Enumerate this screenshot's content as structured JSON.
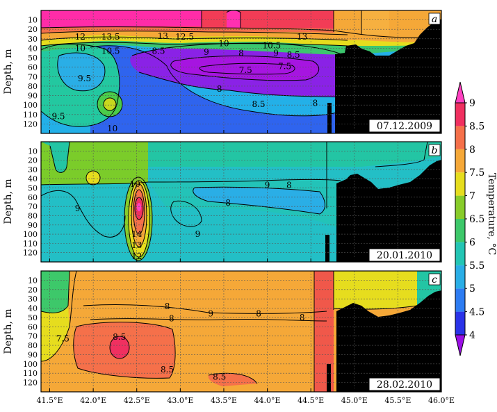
{
  "chart_data": {
    "type": "heatmap",
    "xaxis": {
      "range": [
        41.4,
        46.0
      ],
      "ticks": [
        41.5,
        42.0,
        42.5,
        43.0,
        43.5,
        44.0,
        44.5,
        45.0,
        45.5,
        46.0
      ],
      "tick_labels": [
        "41.5°E",
        "42.0°E",
        "42.5°E",
        "43.0°E",
        "43.5°E",
        "44.0°E",
        "44.5°E",
        "45.0°E",
        "45.5°E",
        "46.0°E"
      ],
      "grid": true
    },
    "yaxis": {
      "label": "Depth, m",
      "range": [
        0,
        130
      ],
      "inverted": true,
      "ticks": [
        10,
        20,
        30,
        40,
        50,
        60,
        70,
        80,
        90,
        100,
        110,
        120
      ],
      "tick_labels": [
        "10",
        "20",
        "30",
        "40",
        "50",
        "60",
        "70",
        "80",
        "90",
        "100",
        "110",
        "120"
      ],
      "grid": true
    },
    "colorbar": {
      "label": "Temperature, °C",
      "min": 4,
      "max": 9,
      "ticks": [
        4,
        4.5,
        5,
        5.5,
        6,
        6.5,
        7,
        7.5,
        8,
        8.5,
        9
      ],
      "tick_labels": [
        "4",
        "4.5",
        "5",
        "5.5",
        "6",
        "6.5",
        "7",
        "7.5",
        "8",
        "8.5",
        "9"
      ],
      "colors": [
        "#9b0fe6",
        "#2a33e8",
        "#2d7cf2",
        "#2aaee6",
        "#23c5b4",
        "#3dc86a",
        "#88cc2a",
        "#e6dd1e",
        "#f5a838",
        "#f5704a",
        "#f03060",
        "#ff40c0"
      ]
    },
    "panels": [
      {
        "letter": "a",
        "date": "07.12.2009",
        "contour_labels": [
          {
            "x": 41.85,
            "y": 28,
            "v": "12"
          },
          {
            "x": 42.2,
            "y": 28,
            "v": "13.5"
          },
          {
            "x": 42.8,
            "y": 27,
            "v": "13"
          },
          {
            "x": 43.05,
            "y": 28,
            "v": "12.5"
          },
          {
            "x": 43.5,
            "y": 35,
            "v": "10"
          },
          {
            "x": 44.05,
            "y": 37,
            "v": "10.5"
          },
          {
            "x": 44.4,
            "y": 28,
            "v": "13"
          },
          {
            "x": 41.85,
            "y": 40,
            "v": "10"
          },
          {
            "x": 42.2,
            "y": 43,
            "v": "10.5"
          },
          {
            "x": 42.75,
            "y": 43,
            "v": "8.5"
          },
          {
            "x": 43.3,
            "y": 44,
            "v": "9"
          },
          {
            "x": 43.7,
            "y": 45,
            "v": "8"
          },
          {
            "x": 44.1,
            "y": 45,
            "v": "9"
          },
          {
            "x": 44.3,
            "y": 47,
            "v": "8.5"
          },
          {
            "x": 41.9,
            "y": 72,
            "v": "9.5"
          },
          {
            "x": 43.75,
            "y": 63,
            "v": "7.5"
          },
          {
            "x": 44.2,
            "y": 59,
            "v": "7.5"
          },
          {
            "x": 43.45,
            "y": 83,
            "v": "8"
          },
          {
            "x": 43.9,
            "y": 99,
            "v": "8.5"
          },
          {
            "x": 44.55,
            "y": 98,
            "v": "8"
          },
          {
            "x": 41.6,
            "y": 112,
            "v": "9.5"
          },
          {
            "x": 42.22,
            "y": 125,
            "v": "10"
          }
        ]
      },
      {
        "letter": "b",
        "date": "20.01.2010",
        "contour_labels": [
          {
            "x": 42.48,
            "y": 46,
            "v": "10"
          },
          {
            "x": 41.82,
            "y": 72,
            "v": "9"
          },
          {
            "x": 43.2,
            "y": 100,
            "v": "9"
          },
          {
            "x": 43.55,
            "y": 66,
            "v": "8"
          },
          {
            "x": 44.0,
            "y": 47,
            "v": "9"
          },
          {
            "x": 44.25,
            "y": 47,
            "v": "8"
          },
          {
            "x": 42.5,
            "y": 100,
            "v": "14"
          },
          {
            "x": 42.5,
            "y": 112,
            "v": "13"
          },
          {
            "x": 42.5,
            "y": 124,
            "v": "12"
          }
        ]
      },
      {
        "letter": "c",
        "date": "28.02.2010",
        "contour_labels": [
          {
            "x": 41.65,
            "y": 73,
            "v": "7.5"
          },
          {
            "x": 42.3,
            "y": 71,
            "v": "8.5"
          },
          {
            "x": 42.85,
            "y": 38,
            "v": "8"
          },
          {
            "x": 42.9,
            "y": 51,
            "v": "8"
          },
          {
            "x": 43.35,
            "y": 46,
            "v": "9"
          },
          {
            "x": 43.9,
            "y": 46,
            "v": "8"
          },
          {
            "x": 44.4,
            "y": 50,
            "v": "8"
          },
          {
            "x": 42.85,
            "y": 106,
            "v": "8.5"
          },
          {
            "x": 43.45,
            "y": 114,
            "v": "8.5"
          }
        ]
      }
    ]
  }
}
